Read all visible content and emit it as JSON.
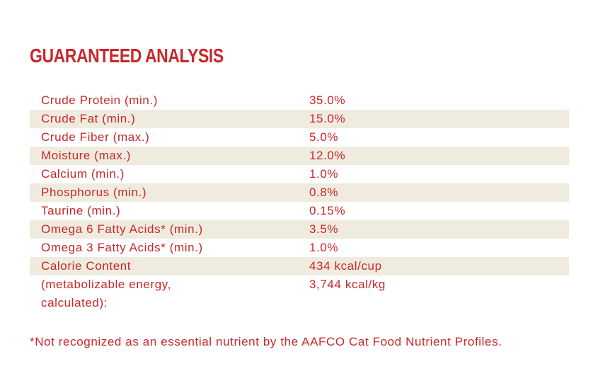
{
  "title": "GUARANTEED ANALYSIS",
  "rows": [
    {
      "label": "Crude Protein (min.)",
      "value": "35.0%"
    },
    {
      "label": "Crude Fat (min.)",
      "value": "15.0%"
    },
    {
      "label": "Crude Fiber (max.)",
      "value": "5.0%"
    },
    {
      "label": "Moisture (max.)",
      "value": "12.0%"
    },
    {
      "label": "Calcium (min.)",
      "value": "1.0%"
    },
    {
      "label": "Phosphorus (min.)",
      "value": "0.8%"
    },
    {
      "label": "Taurine (min.)",
      "value": "0.15%"
    },
    {
      "label": "Omega 6 Fatty Acids* (min.)",
      "value": "3.5%"
    },
    {
      "label": "Omega 3 Fatty Acids* (min.)",
      "value": "1.0%"
    },
    {
      "label": "Calorie Content",
      "value": "434 kcal/cup"
    },
    {
      "label": "(metabolizable energy, calculated):",
      "value": "3,744 kcal/kg"
    }
  ],
  "footnote": "*Not recognized as an essential nutrient by the AAFCO Cat Food Nutrient Profiles.",
  "colors": {
    "text": "#c8282a",
    "stripe": "#efebdf"
  }
}
